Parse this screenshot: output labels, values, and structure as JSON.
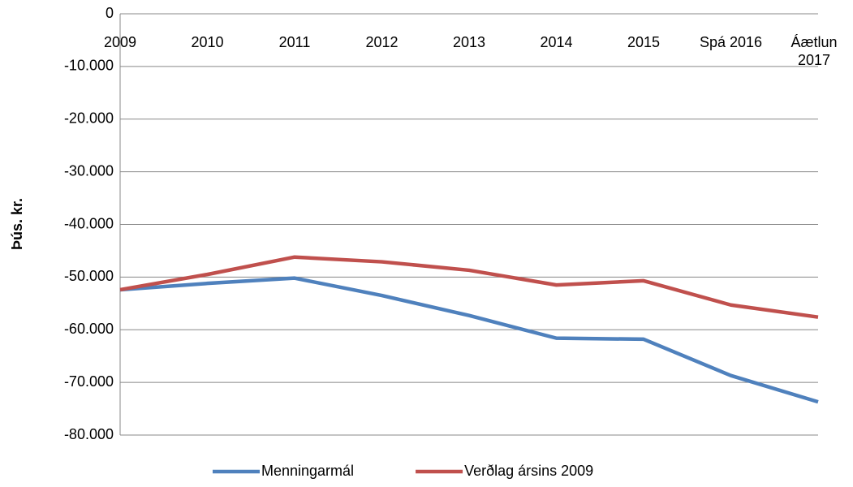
{
  "chart_data": {
    "type": "line",
    "y_label": "Þús. kr.",
    "categories": [
      "2009",
      "2010",
      "2011",
      "2012",
      "2013",
      "2014",
      "2015",
      "Spá 2016",
      "Áætlun 2017"
    ],
    "series": [
      {
        "name": "Menningarmál",
        "color": "#4f81bd",
        "values": [
          -52400,
          -51200,
          -50200,
          -53500,
          -57300,
          -61600,
          -61800,
          -68700,
          -73700
        ]
      },
      {
        "name": "Verðlag ársins 2009",
        "color": "#c0504d",
        "values": [
          -52400,
          -49500,
          -46200,
          -47100,
          -48700,
          -51500,
          -50700,
          -55300,
          -57600
        ]
      }
    ],
    "ylim": [
      -80000,
      0
    ],
    "yticks": [
      0,
      {
        "value": -10000,
        "label": "-10.000"
      },
      {
        "value": -20000,
        "label": "-20.000"
      },
      {
        "value": -30000,
        "label": "-30.000"
      },
      {
        "value": -40000,
        "label": "-40.000"
      },
      {
        "value": -50000,
        "label": "-50.000"
      },
      {
        "value": -60000,
        "label": "-60.000"
      },
      {
        "value": -70000,
        "label": "-70.000"
      },
      {
        "value": -80000,
        "label": "-80.000"
      }
    ],
    "grid": true,
    "legend": "bottom"
  }
}
